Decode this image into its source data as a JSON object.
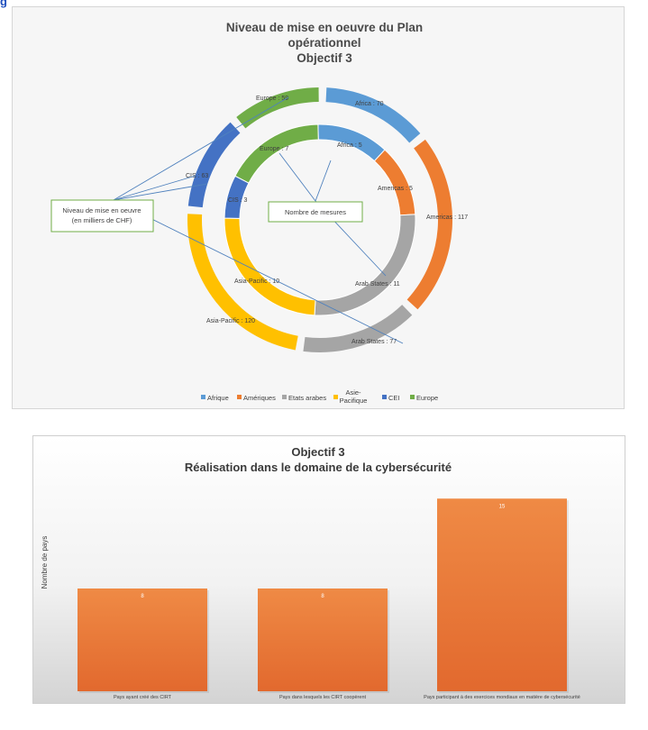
{
  "page_header": "g",
  "colors": {
    "afrique": "#5b9bd5",
    "ameriques": "#ed7d31",
    "etats_arabes": "#a5a5a5",
    "asie_pacifique": "#ffc000",
    "cei": "#4472c4",
    "europe": "#70ad47",
    "bar": "#ed7d31"
  },
  "chart_data": [
    {
      "type": "pie",
      "variant": "double-donut",
      "title_lines": [
        "Niveau de mise en oeuvre du Plan",
        "opérationnel",
        "Objectif 3"
      ],
      "legend": [
        "Afrique",
        "Amériques",
        "Etats arabes",
        "Asie-Pacifique",
        "CEI",
        "Europe"
      ],
      "legend_display": [
        [
          "Afrique"
        ],
        [
          "Amériques"
        ],
        [
          "Etats arabes"
        ],
        [
          "Asie-",
          "Pacifique"
        ],
        [
          "CEI"
        ],
        [
          "Europe"
        ]
      ],
      "callouts": {
        "outer": [
          "Niveau de mise en oeuvre",
          "(en milliers de CHF)"
        ],
        "inner": [
          "Nombre de mesures"
        ]
      },
      "series": [
        {
          "name": "Nombre de mesures",
          "ring": "inner",
          "categories": [
            "Africa",
            "Americas",
            "Arab States",
            "Asia-Pacific",
            "CIS",
            "Europe"
          ],
          "values": [
            5,
            5,
            11,
            10,
            3,
            7
          ],
          "labels": [
            "Africa : 5",
            "Americas : 5",
            "Arab States : 11",
            "Asia-Pacific : 10",
            "CIS : 3",
            "Europe : 7"
          ]
        },
        {
          "name": "Niveau de mise en oeuvre (en milliers de CHF)",
          "ring": "outer",
          "categories": [
            "Africa",
            "Americas",
            "Arab States",
            "Asia-Pacific",
            "CIS",
            "Europe"
          ],
          "values": [
            70,
            117,
            77,
            120,
            63,
            59
          ],
          "labels": [
            "Africa : 70",
            "Americas : 117",
            "Arab States : 77",
            "Asia-Pacific : 120",
            "CIS : 63",
            "Europe : 59"
          ]
        }
      ]
    },
    {
      "type": "bar",
      "title_lines": [
        "Objectif 3",
        "Réalisation dans le domaine de la cybersécurité"
      ],
      "ylabel": "Nombre de pays",
      "categories": [
        "Pays ayant créé des CIRT",
        "Pays dans lesquels les CIRT coopèrent",
        "Pays participant à des exercices mondiaux en matière de cybersécurité"
      ],
      "values": [
        8,
        8,
        15
      ],
      "ylim": [
        0,
        16
      ]
    }
  ]
}
